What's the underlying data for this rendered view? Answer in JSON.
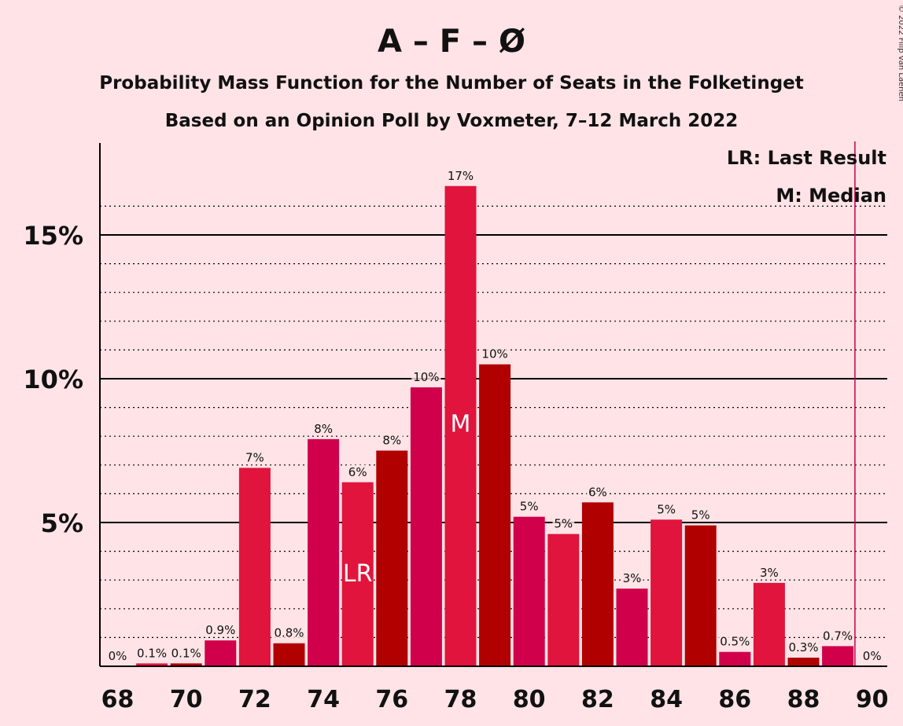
{
  "title": "A – F – Ø",
  "subtitle1": "Probability Mass Function for the Number of Seats in the Folketinget",
  "subtitle2": "Based on an Opinion Poll by Voxmeter, 7–12 March 2022",
  "copyright": "© 2022 Filip van Laenen",
  "legend": {
    "lr": "LR: Last Result",
    "m": "M: Median"
  },
  "colors": {
    "background": "#ffe3e6",
    "bar_a": "#e0143c",
    "bar_b": "#b00000",
    "bar_c": "#d0004b",
    "majority_line": "#c8004b"
  },
  "chart_data": {
    "type": "bar",
    "x": [
      68,
      69,
      70,
      71,
      72,
      73,
      74,
      75,
      76,
      77,
      78,
      79,
      80,
      81,
      82,
      83,
      84,
      85,
      86,
      87,
      88,
      89,
      90
    ],
    "values": [
      0,
      0.1,
      0.1,
      0.9,
      6.9,
      0.8,
      7.9,
      6.4,
      7.5,
      9.7,
      16.7,
      10.5,
      5.2,
      4.6,
      5.7,
      2.7,
      5.1,
      4.9,
      0.5,
      2.9,
      0.3,
      0.7,
      0
    ],
    "labels": [
      "0%",
      "0.1%",
      "0.1%",
      "0.9%",
      "7%",
      "0.8%",
      "8%",
      "6%",
      "8%",
      "10%",
      "17%",
      "10%",
      "5%",
      "5%",
      "6%",
      "3%",
      "5%",
      "5%",
      "0.5%",
      "3%",
      "0.3%",
      "0.7%",
      "0%"
    ],
    "xticks": [
      "68",
      "70",
      "72",
      "74",
      "76",
      "78",
      "80",
      "82",
      "84",
      "86",
      "88",
      "90"
    ],
    "yticks": [
      "5%",
      "10%",
      "15%"
    ],
    "ytick_values": [
      5,
      10,
      15
    ],
    "ylim": [
      0,
      18
    ],
    "last_result": 75,
    "last_result_label": "LR",
    "median": 78,
    "median_label": "M",
    "majority": 89.5,
    "grid": "dotted minor lines every 1%, solid lines at 5%, 10%, 15%"
  }
}
